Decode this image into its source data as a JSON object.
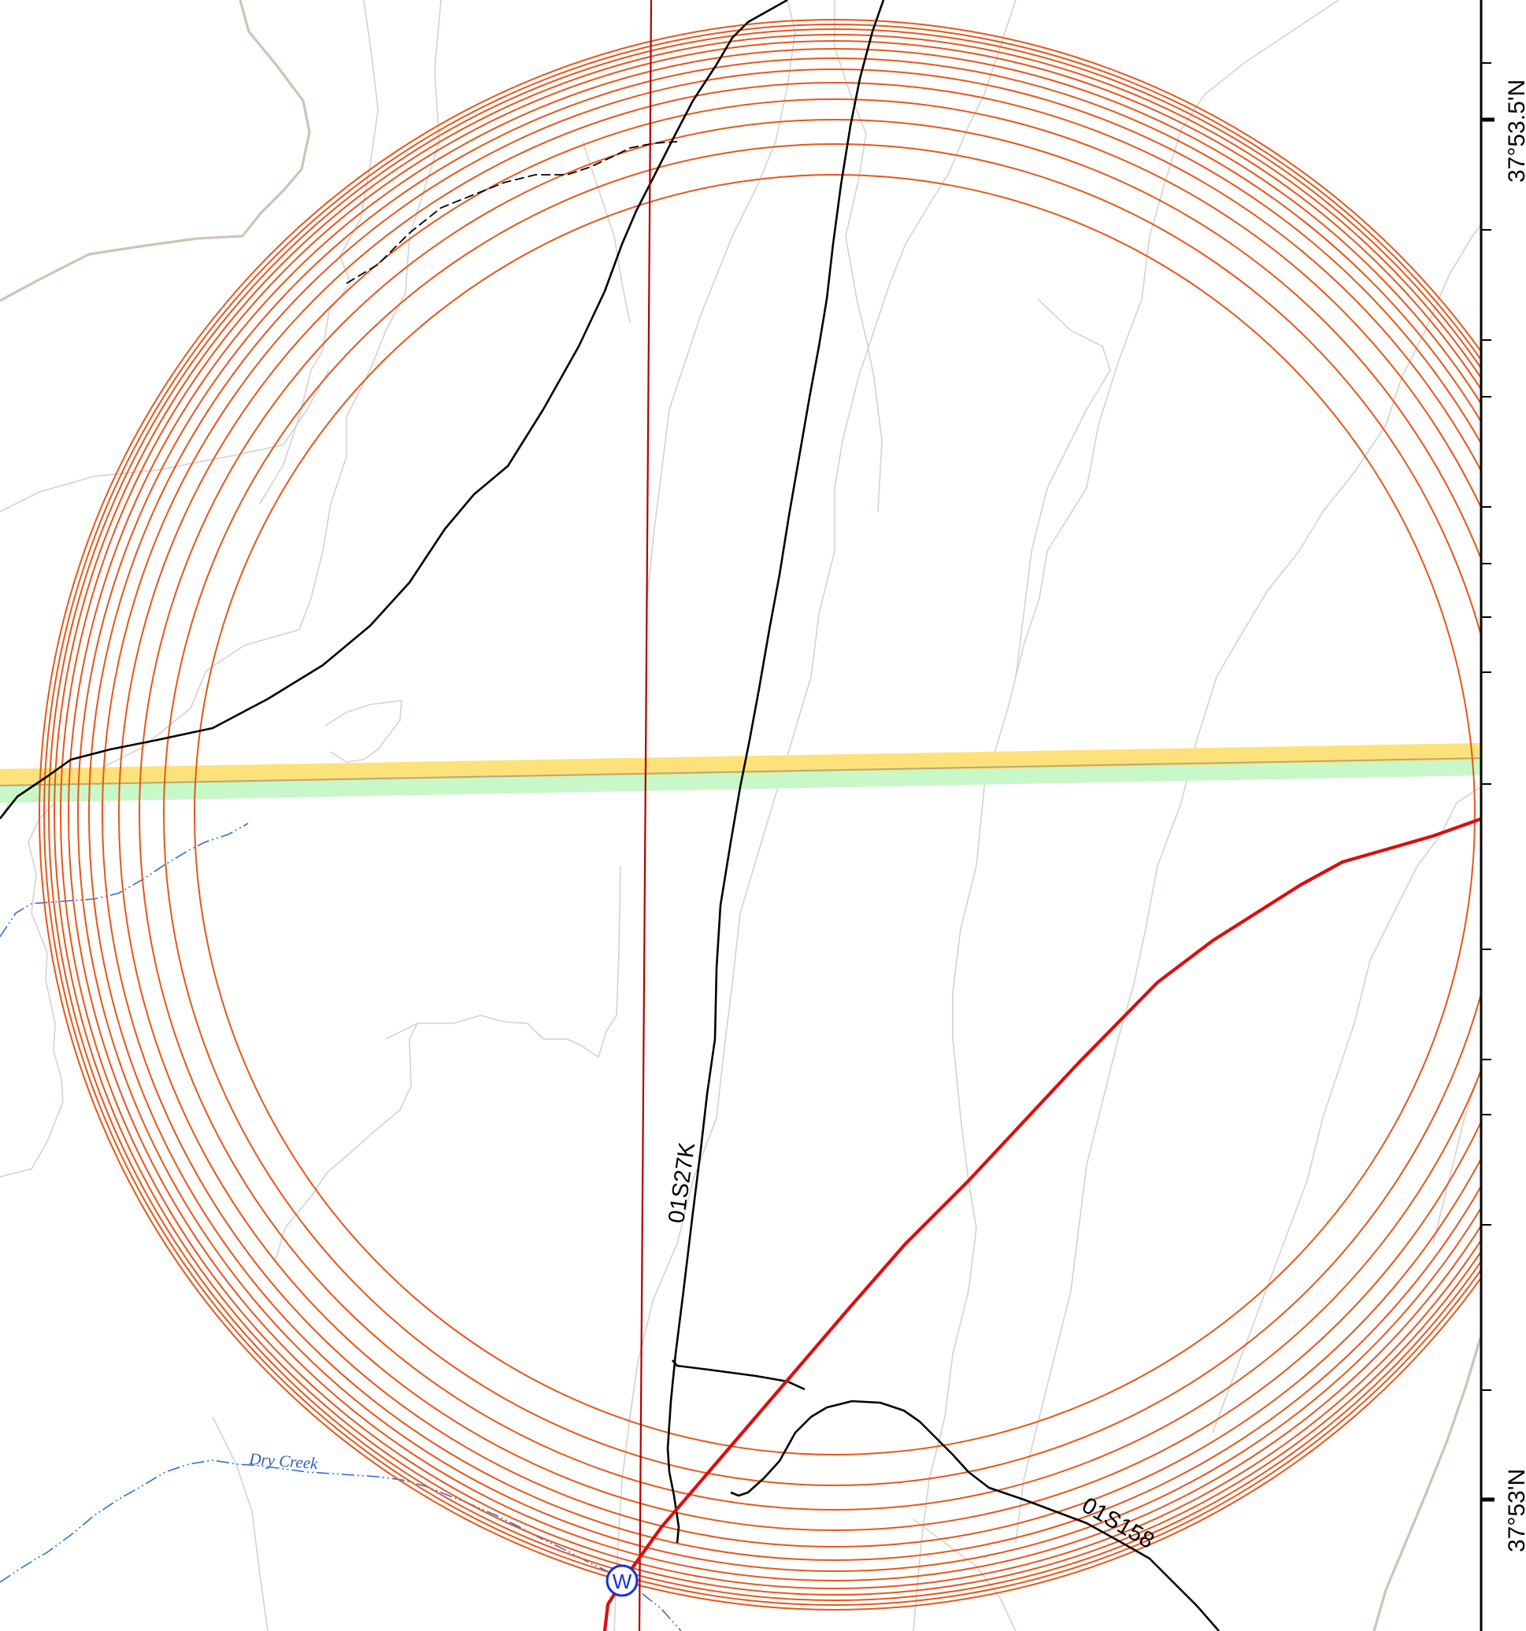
{
  "map": {
    "road_labels": {
      "road_01S27K": "01S27K",
      "road_01S158": "01S158"
    },
    "stream_labels": {
      "dry_creek": "Dry Creek"
    },
    "feature_symbols": {
      "water_symbol": "W"
    },
    "latitude_labels": [
      "37°53.5'N",
      "37°53'N"
    ],
    "colors": {
      "range_rings": "#e8561a",
      "roads": "#000000",
      "boundary_red": "#dd0d0d",
      "meridian": "#b30000",
      "yellow_band": "#fde27b",
      "green_band": "#c8f8c8",
      "stream": "#2f6fd8",
      "contours": "#d6d2cc",
      "water_symbol": "#1530d8"
    },
    "icons": {
      "water_symbol": "circled-w-icon"
    }
  }
}
